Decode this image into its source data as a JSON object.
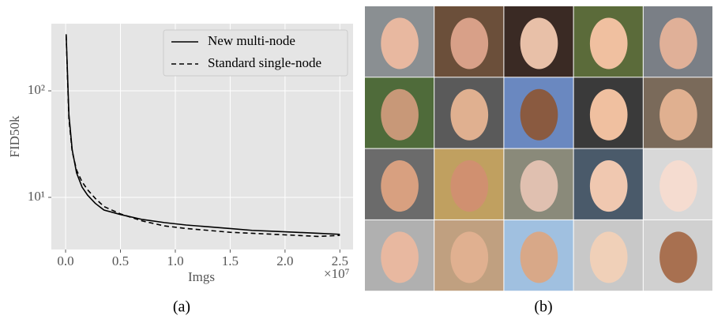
{
  "chart_data": {
    "type": "line",
    "xlabel": "Imgs",
    "ylabel": "FID50k",
    "x_offset_label": "×10⁷",
    "x": [
      0.005,
      0.03,
      0.06,
      0.1,
      0.15,
      0.2,
      0.27,
      0.35,
      0.5,
      0.7,
      0.9,
      1.1,
      1.3,
      1.5,
      1.7,
      1.9,
      2.1,
      2.3,
      2.5
    ],
    "series": [
      {
        "name": "New multi-node",
        "color": "#000000",
        "linestyle": "solid",
        "values": [
          340,
          60,
          28,
          17,
          12.5,
          10.5,
          8.8,
          7.6,
          6.9,
          6.2,
          5.8,
          5.5,
          5.3,
          5.1,
          4.9,
          4.8,
          4.7,
          4.6,
          4.5
        ]
      },
      {
        "name": "Standard single-node",
        "color": "#000000",
        "linestyle": "dashed",
        "values": [
          330,
          55,
          27,
          18,
          14,
          11.8,
          9.8,
          8.2,
          7.0,
          6.0,
          5.4,
          5.1,
          4.9,
          4.7,
          4.6,
          4.5,
          4.4,
          4.3,
          4.4
        ]
      }
    ],
    "xlim": [
      -0.13,
      2.62
    ],
    "xticks": [
      {
        "value": 0,
        "label": "0.0"
      },
      0.5,
      {
        "value": 1,
        "label": "1.0"
      },
      1.5,
      {
        "value": 2,
        "label": "2.0"
      },
      2.5
    ],
    "ylim": [
      3.24,
      427
    ],
    "log_y": true,
    "yticks": [
      {
        "value": 10,
        "label": "10¹"
      },
      {
        "value": 100,
        "label": "10²"
      }
    ],
    "grid": true,
    "legend": "upper right"
  },
  "captions": [
    "(a)",
    "(b)"
  ]
}
